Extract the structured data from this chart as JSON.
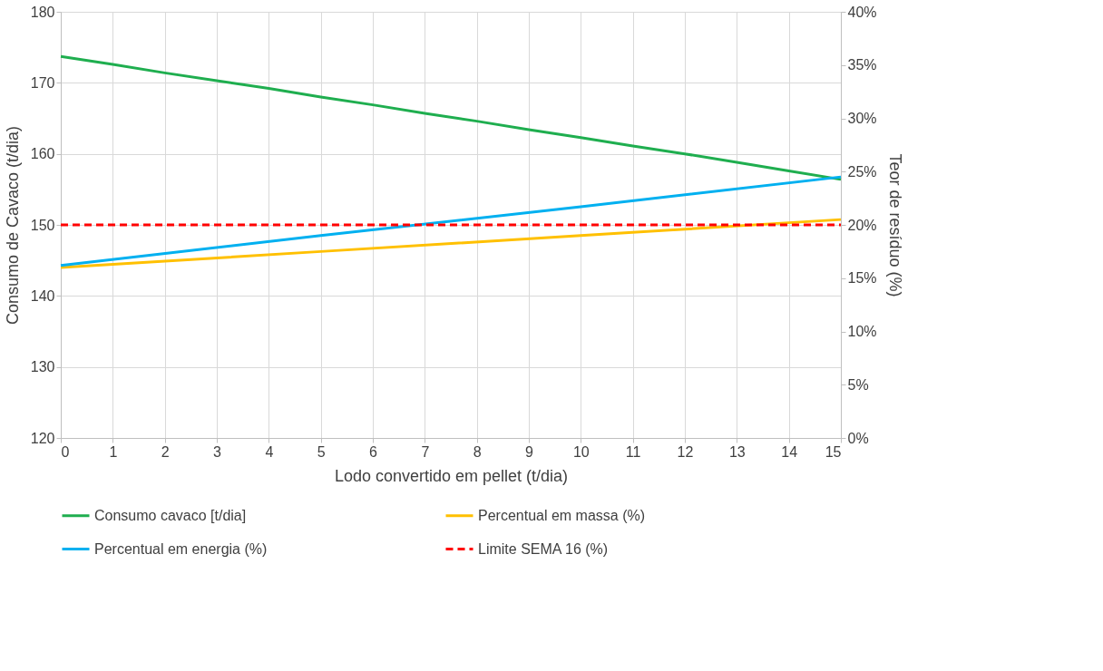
{
  "chart_data": {
    "type": "line",
    "xlabel": "Lodo convertido em pellet (t/dia)",
    "ylabel": "Consumo de Cavaco (t/dia)",
    "y2label": "Teor de resíduo (%)",
    "x": [
      0,
      1,
      2,
      3,
      4,
      5,
      6,
      7,
      8,
      9,
      10,
      11,
      12,
      13,
      14,
      15
    ],
    "series": [
      {
        "name": "Consumo cavaco [t/dia]",
        "color": "#1fae4f",
        "values": [
          173.7,
          172.6,
          171.4,
          170.3,
          169.2,
          168.0,
          166.9,
          165.7,
          164.6,
          163.4,
          162.3,
          161.1,
          160.0,
          158.8,
          157.6,
          156.4
        ]
      },
      {
        "name": "Percentual em massa (%)",
        "color": "#ffc000",
        "axis": "y2",
        "x": [
          0,
          5,
          10,
          15
        ],
        "values": [
          16.0,
          17.5,
          19.0,
          20.5
        ]
      },
      {
        "name": "Percentual em energia (%)",
        "color": "#00b0f0",
        "axis": "y2",
        "x": [
          0,
          5,
          10,
          15
        ],
        "values": [
          16.2,
          19.0,
          21.7,
          24.5
        ]
      }
    ],
    "ref_lines": [
      {
        "axis": "y2",
        "value": 20,
        "label": "Limite SEMA 16 (%)",
        "color": "#ff0000",
        "line_style": "dashed"
      }
    ],
    "xlim": [
      0,
      15
    ],
    "xticks": [
      0,
      1,
      2,
      3,
      4,
      5,
      6,
      7,
      8,
      9,
      10,
      11,
      12,
      13,
      14,
      15
    ],
    "ylim": [
      120,
      180
    ],
    "yticks": [
      120,
      130,
      140,
      150,
      160,
      170,
      180
    ],
    "y2lim": [
      0,
      40
    ],
    "y2ticks": [
      {
        "value": 0,
        "label": "0%"
      },
      {
        "value": 5,
        "label": "5%"
      },
      {
        "value": 10,
        "label": "10%"
      },
      {
        "value": 15,
        "label": "15%"
      },
      {
        "value": 20,
        "label": "20%"
      },
      {
        "value": 25,
        "label": "25%"
      },
      {
        "value": 30,
        "label": "30%"
      },
      {
        "value": 35,
        "label": "35%"
      },
      {
        "value": 40,
        "label": "40%"
      }
    ],
    "grid": true,
    "legend": "bottom",
    "line_style": "solid",
    "marker": "none"
  }
}
